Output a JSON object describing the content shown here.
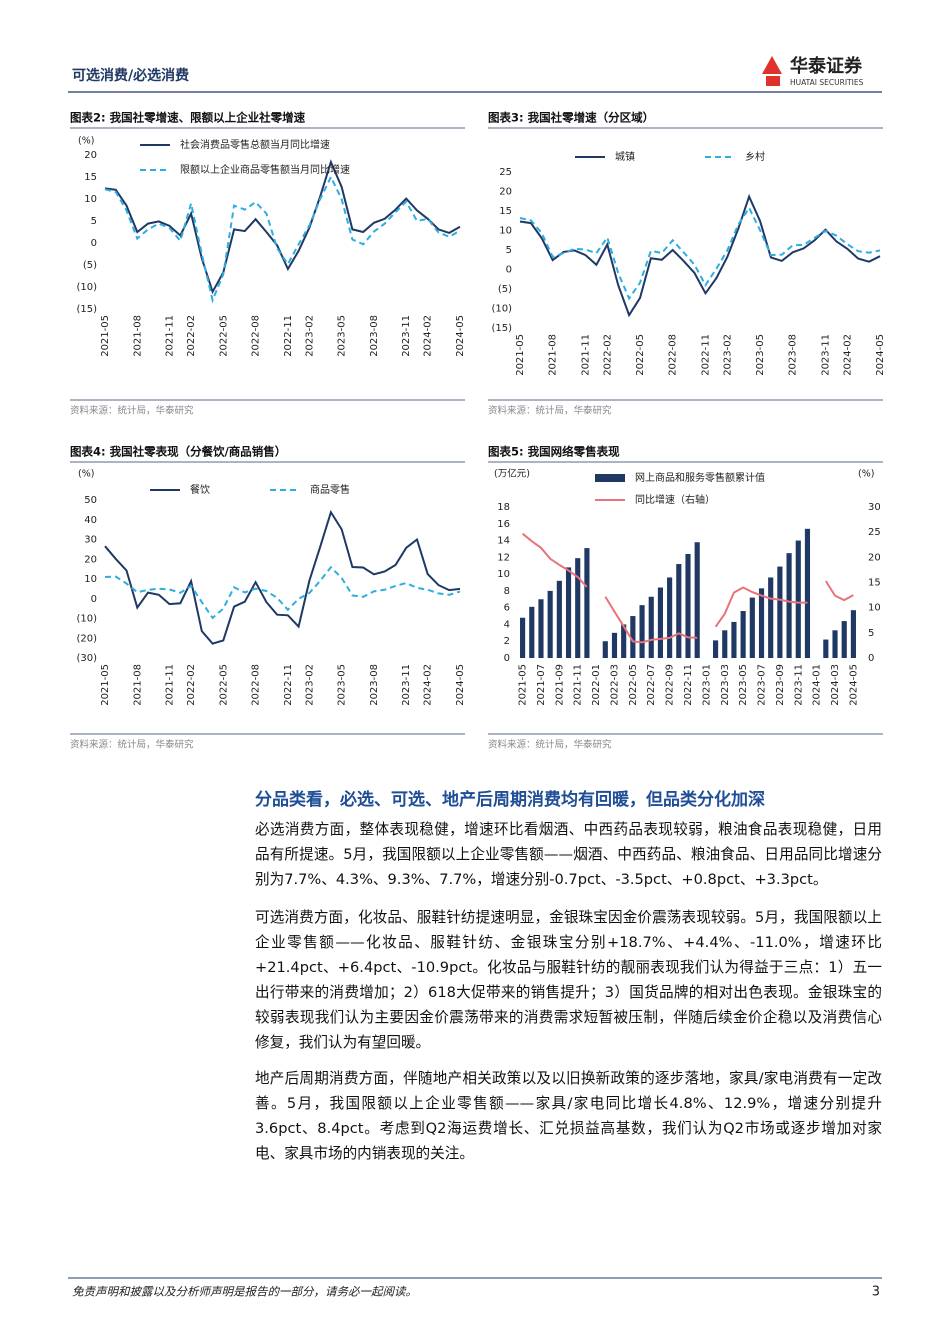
{
  "header": {
    "title": "可选消费/必选消费",
    "brand": "华泰证券",
    "brand_en": "HUATAI SECURITIES"
  },
  "chart_data": [
    {
      "type": "line",
      "title": "图表2:  我国社零增速、限额以上企业社零增速",
      "y_label": "(%)",
      "source": "资料来源：统计局，华泰研究",
      "categories": [
        "2021-05",
        null,
        null,
        "2021-08",
        null,
        null,
        "2021-11",
        null,
        "2022-02",
        null,
        null,
        "2022-05",
        null,
        null,
        "2022-08",
        null,
        null,
        "2022-11",
        null,
        "2023-02",
        null,
        null,
        "2023-05",
        null,
        null,
        "2023-08",
        null,
        null,
        "2023-11",
        null,
        "2024-02",
        null,
        null,
        "2024-05"
      ],
      "series": [
        {
          "name": "社会消费品零售总额当月同比增速",
          "color": "#1f3864",
          "dashed": false,
          "values": [
            12.4,
            12.1,
            8.5,
            2.5,
            4.4,
            4.9,
            3.9,
            1.7,
            6.7,
            -3.5,
            -11.1,
            -6.7,
            3.1,
            2.7,
            5.4,
            2.5,
            -0.5,
            -5.9,
            -1.8,
            3.5,
            10.6,
            18.4,
            12.7,
            3.1,
            2.5,
            4.6,
            5.5,
            7.6,
            10.1,
            7.4,
            5.5,
            3.1,
            2.3,
            3.7
          ]
        },
        {
          "name": "限额以上企业商品零售额当月同比增速",
          "color": "#2eaee0",
          "dashed": true,
          "values": [
            12.2,
            11.6,
            7.4,
            1.0,
            3.1,
            4.4,
            3.4,
            0.5,
            9.0,
            -2.5,
            -13.0,
            -7.1,
            8.5,
            7.6,
            9.3,
            6.7,
            -1.2,
            -4.8,
            -0.3,
            4.0,
            10.0,
            15.0,
            9.9,
            0.8,
            -0.3,
            2.6,
            4.4,
            7.0,
            9.4,
            5.0,
            5.5,
            2.4,
            1.4,
            2.8
          ]
        }
      ],
      "ylim": [
        -15,
        20
      ],
      "yticks": [
        20,
        15,
        10,
        5,
        0,
        {
          "value": -5,
          "label": "(5)"
        },
        {
          "value": -10,
          "label": "(10)"
        },
        {
          "value": -15,
          "label": "(15)"
        }
      ]
    },
    {
      "type": "line",
      "title": "图表3:  我国社零增速（分区域）",
      "source": "资料来源：统计局，华泰研究",
      "categories": [
        "2021-05",
        null,
        null,
        "2021-08",
        null,
        null,
        "2021-11",
        null,
        "2022-02",
        null,
        null,
        "2022-05",
        null,
        null,
        "2022-08",
        null,
        null,
        "2022-11",
        null,
        "2023-02",
        null,
        null,
        "2023-05",
        null,
        null,
        "2023-08",
        null,
        null,
        "2023-11",
        null,
        "2024-02",
        null,
        null,
        "2024-05"
      ],
      "series": [
        {
          "name": "城镇",
          "color": "#1f3864",
          "dashed": false,
          "values": [
            12.3,
            11.9,
            8.0,
            2.4,
            4.5,
            4.9,
            3.7,
            1.2,
            6.4,
            -4.0,
            -11.7,
            -7.3,
            2.9,
            2.5,
            5.0,
            2.2,
            -0.9,
            -6.1,
            -2.2,
            3.2,
            10.4,
            18.7,
            12.5,
            3.1,
            2.2,
            4.4,
            5.4,
            7.5,
            10.2,
            7.2,
            5.3,
            2.8,
            2.0,
            3.4
          ]
        },
        {
          "name": "乡村",
          "color": "#2eaee0",
          "dashed": true,
          "values": [
            13.2,
            12.6,
            9.3,
            3.2,
            4.2,
            5.3,
            5.1,
            4.2,
            8.2,
            -0.9,
            -7.4,
            -3.4,
            4.8,
            4.2,
            7.5,
            4.4,
            1.2,
            -4.0,
            0.2,
            4.9,
            11.5,
            15.8,
            10.1,
            3.7,
            3.8,
            6.2,
            6.3,
            8.1,
            9.9,
            8.7,
            6.5,
            4.7,
            4.3,
            4.9
          ]
        }
      ],
      "ylim": [
        -15,
        25
      ],
      "yticks": [
        25,
        20,
        15,
        10,
        5,
        0,
        {
          "value": -5,
          "label": "(5)"
        },
        {
          "value": -10,
          "label": "(10)"
        },
        {
          "value": -15,
          "label": "(15)"
        }
      ]
    },
    {
      "type": "line",
      "title": "图表4:  我国社零表现（分餐饮/商品销售）",
      "y_label": "(%)",
      "source": "资料来源：统计局，华泰研究",
      "categories": [
        "2021-05",
        null,
        null,
        "2021-08",
        null,
        null,
        "2021-11",
        null,
        "2022-02",
        null,
        null,
        "2022-05",
        null,
        null,
        "2022-08",
        null,
        null,
        "2022-11",
        null,
        "2023-02",
        null,
        null,
        "2023-05",
        null,
        null,
        "2023-08",
        null,
        null,
        "2023-11",
        null,
        "2024-02",
        null,
        null,
        "2024-05"
      ],
      "series": [
        {
          "name": "餐饮",
          "color": "#1f3864",
          "dashed": false,
          "values": [
            26.6,
            20.2,
            14.3,
            -4.5,
            3.1,
            2.0,
            -2.7,
            -2.3,
            8.9,
            -16.4,
            -22.7,
            -21.1,
            -4.0,
            -1.5,
            8.4,
            -1.7,
            -8.1,
            -8.4,
            -14.1,
            9.2,
            26.3,
            43.8,
            35.1,
            16.1,
            15.8,
            12.4,
            13.8,
            17.1,
            25.8,
            30.0,
            12.5,
            6.9,
            4.4,
            5.0
          ]
        },
        {
          "name": "商品零售",
          "color": "#2eaee0",
          "dashed": true,
          "values": [
            11.0,
            11.2,
            7.7,
            3.3,
            4.5,
            5.1,
            4.7,
            3.0,
            6.5,
            -1.7,
            -9.7,
            -5.0,
            5.8,
            3.2,
            5.1,
            3.9,
            0.5,
            -5.6,
            0.0,
            2.9,
            9.1,
            15.9,
            10.5,
            1.7,
            1.0,
            3.7,
            4.6,
            6.5,
            8.0,
            5.5,
            4.6,
            2.7,
            2.0,
            3.6
          ]
        }
      ],
      "ylim": [
        -30,
        50
      ],
      "yticks": [
        50,
        40,
        30,
        20,
        10,
        0,
        {
          "value": -10,
          "label": "(10)"
        },
        {
          "value": -20,
          "label": "(20)"
        },
        {
          "value": -30,
          "label": "(30)"
        }
      ]
    },
    {
      "type": "combo",
      "title": "图表5:  我国网络零售表现",
      "y_label": "(万亿元)",
      "y2_label": "(%)",
      "source": "资料来源：统计局，华泰研究",
      "categories": [
        "2021-05",
        null,
        "2021-07",
        null,
        "2021-09",
        null,
        "2021-11",
        null,
        "2022-01",
        null,
        "2022-03",
        null,
        "2022-05",
        null,
        "2022-07",
        null,
        "2022-09",
        null,
        "2022-11",
        null,
        "2023-01",
        null,
        "2023-03",
        null,
        "2023-05",
        null,
        "2023-07",
        null,
        "2023-09",
        null,
        "2023-11",
        null,
        "2024-01",
        null,
        "2024-03",
        null,
        "2024-05"
      ],
      "series": [
        {
          "name": "网上商品和服务零售额累计值",
          "type": "bar",
          "color": "#1f3864",
          "values": [
            4.8,
            6.1,
            7.0,
            8.0,
            9.2,
            10.8,
            11.9,
            13.1,
            null,
            2.0,
            3.0,
            4.0,
            5.0,
            6.3,
            7.3,
            8.4,
            9.6,
            11.2,
            12.4,
            13.8,
            null,
            2.1,
            3.3,
            4.3,
            5.6,
            7.2,
            8.3,
            9.6,
            10.9,
            12.5,
            14.0,
            15.4,
            null,
            2.2,
            3.3,
            4.4,
            5.7
          ]
        },
        {
          "name": "同比增速（右轴）",
          "type": "line",
          "axis": "y2",
          "color": "#e8737a",
          "dashed": false,
          "values": [
            24.7,
            23.2,
            21.9,
            19.7,
            18.5,
            17.4,
            16.1,
            14.1,
            null,
            12.2,
            9.2,
            6.3,
            3.3,
            3.1,
            3.6,
            3.8,
            4.0,
            4.9,
            4.1,
            4.0,
            null,
            6.2,
            8.8,
            13.0,
            14.0,
            13.1,
            12.4,
            11.8,
            11.6,
            11.2,
            11.0,
            11.0,
            null,
            15.3,
            12.4,
            11.5,
            12.5
          ]
        }
      ],
      "ylim": [
        0,
        18
      ],
      "yticks": [
        0,
        2,
        4,
        6,
        8,
        10,
        12,
        14,
        16,
        18
      ],
      "y2lim": [
        0,
        30
      ],
      "y2ticks": [
        0,
        5,
        10,
        15,
        20,
        25,
        30
      ]
    }
  ],
  "section": {
    "heading": "分品类看，必选、可选、地产后周期消费均有回暖，但品类分化加深",
    "paragraphs": [
      "必选消费方面，整体表现稳健，增速环比看烟酒、中西药品表现较弱，粮油食品表现稳健，日用品有所提速。5月，我国限额以上企业零售额——烟酒、中西药品、粮油食品、日用品同比增速分别为7.7%、4.3%、9.3%、7.7%，增速分别-0.7pct、-3.5pct、+0.8pct、+3.3pct。",
      "可选消费方面，化妆品、服鞋针纺提速明显，金银珠宝因金价震荡表现较弱。5月，我国限额以上企业零售额——化妆品、服鞋针纺、金银珠宝分别+18.7%、+4.4%、-11.0%，增速环比+21.4pct、+6.4pct、-10.9pct。化妆品与服鞋针纺的靓丽表现我们认为得益于三点：1）五一出行带来的消费增加；2）618大促带来的销售提升；3）国货品牌的相对出色表现。金银珠宝的较弱表现我们认为主要因金价震荡带来的消费需求短暂被压制，伴随后续金价企稳以及消费信心修复，我们认为有望回暖。",
      "地产后周期消费方面，伴随地产相关政策以及以旧换新政策的逐步落地，家具/家电消费有一定改善。5月，我国限额以上企业零售额——家具/家电同比增长4.8%、12.9%，增速分别提升3.6pct、8.4pct。考虑到Q2海运费增长、汇兑损益高基数，我们认为Q2市场或逐步增加对家电、家具市场的内销表现的关注。"
    ]
  },
  "footer": {
    "disclaimer": "免责声明和披露以及分析师声明是报告的一部分，请务必一起阅读。",
    "page": "3"
  }
}
